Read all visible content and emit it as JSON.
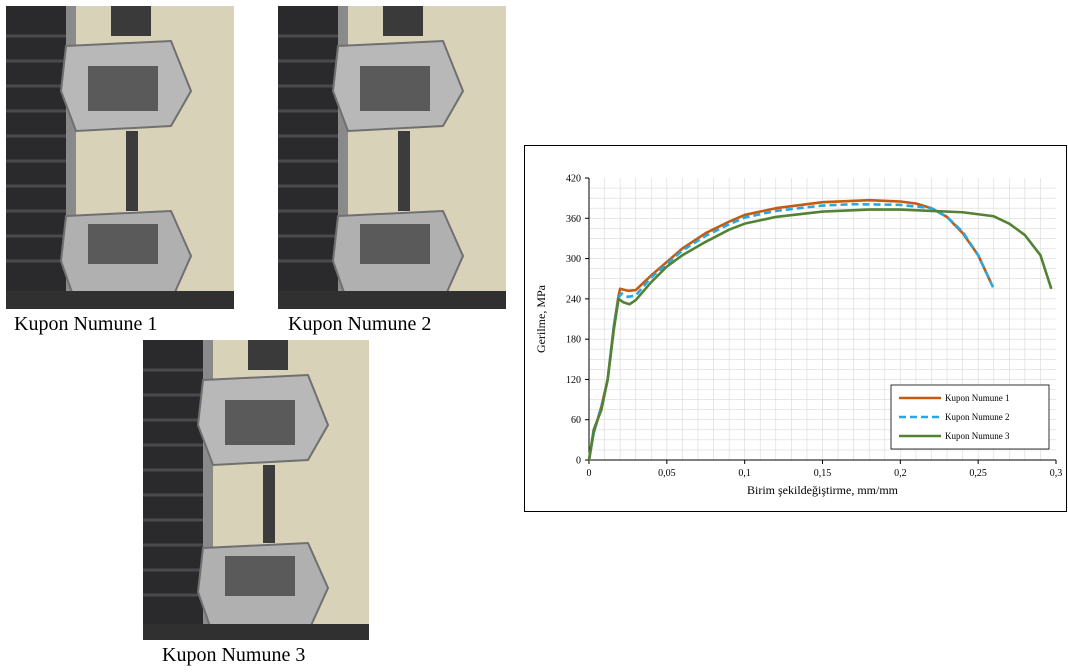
{
  "photos": [
    {
      "caption": "Kupon Numune 1"
    },
    {
      "caption": "Kupon Numune 2"
    },
    {
      "caption": "Kupon Numune 3"
    }
  ],
  "chart_data": {
    "type": "line",
    "title": "",
    "xlabel": "Birim şekildeğiştirme, mm/mm",
    "ylabel": "Gerilme, MPa",
    "xlim": [
      0,
      0.3
    ],
    "ylim": [
      0,
      420
    ],
    "xticks": [
      0,
      0.05,
      0.1,
      0.15,
      0.2,
      0.25,
      0.3
    ],
    "xtick_labels": [
      "0",
      "0,05",
      "0,1",
      "0,15",
      "0,2",
      "0,25",
      "0,3"
    ],
    "yticks": [
      0,
      60,
      120,
      180,
      240,
      300,
      360,
      420
    ],
    "ytick_labels": [
      "0",
      "60",
      "120",
      "180",
      "240",
      "300",
      "360",
      "420"
    ],
    "grid": true,
    "legend_position": "bottom-right",
    "series": [
      {
        "name": "Kupon Numune 1",
        "color": "#C55A11",
        "dash": "solid",
        "points": [
          [
            0,
            0
          ],
          [
            0.003,
            40
          ],
          [
            0.008,
            80
          ],
          [
            0.012,
            120
          ],
          [
            0.016,
            200
          ],
          [
            0.019,
            245
          ],
          [
            0.02,
            255
          ],
          [
            0.025,
            252
          ],
          [
            0.03,
            253
          ],
          [
            0.04,
            275
          ],
          [
            0.05,
            295
          ],
          [
            0.06,
            315
          ],
          [
            0.075,
            338
          ],
          [
            0.09,
            355
          ],
          [
            0.1,
            365
          ],
          [
            0.12,
            375
          ],
          [
            0.15,
            384
          ],
          [
            0.18,
            387
          ],
          [
            0.2,
            385
          ],
          [
            0.21,
            382
          ],
          [
            0.22,
            375
          ],
          [
            0.23,
            362
          ],
          [
            0.24,
            338
          ],
          [
            0.25,
            305
          ],
          [
            0.258,
            265
          ]
        ]
      },
      {
        "name": "Kupon Numune 2",
        "color": "#29A8E0",
        "dash": "dashed",
        "points": [
          [
            0,
            0
          ],
          [
            0.003,
            40
          ],
          [
            0.008,
            80
          ],
          [
            0.012,
            120
          ],
          [
            0.016,
            200
          ],
          [
            0.019,
            242
          ],
          [
            0.021,
            248
          ],
          [
            0.025,
            243
          ],
          [
            0.03,
            245
          ],
          [
            0.04,
            272
          ],
          [
            0.05,
            292
          ],
          [
            0.06,
            312
          ],
          [
            0.075,
            334
          ],
          [
            0.09,
            351
          ],
          [
            0.1,
            361
          ],
          [
            0.12,
            371
          ],
          [
            0.15,
            379
          ],
          [
            0.17,
            381
          ],
          [
            0.2,
            380
          ],
          [
            0.22,
            375
          ],
          [
            0.23,
            362
          ],
          [
            0.24,
            340
          ],
          [
            0.25,
            305
          ],
          [
            0.26,
            255
          ]
        ]
      },
      {
        "name": "Kupon Numune 3",
        "color": "#548235",
        "dash": "solid",
        "points": [
          [
            0,
            0
          ],
          [
            0.003,
            45
          ],
          [
            0.008,
            75
          ],
          [
            0.012,
            120
          ],
          [
            0.016,
            195
          ],
          [
            0.019,
            240
          ],
          [
            0.022,
            235
          ],
          [
            0.026,
            232
          ],
          [
            0.03,
            238
          ],
          [
            0.04,
            265
          ],
          [
            0.05,
            288
          ],
          [
            0.06,
            305
          ],
          [
            0.075,
            325
          ],
          [
            0.09,
            343
          ],
          [
            0.1,
            352
          ],
          [
            0.12,
            362
          ],
          [
            0.15,
            370
          ],
          [
            0.18,
            373
          ],
          [
            0.2,
            373
          ],
          [
            0.22,
            371
          ],
          [
            0.24,
            369
          ],
          [
            0.26,
            363
          ],
          [
            0.27,
            352
          ],
          [
            0.28,
            335
          ],
          [
            0.29,
            305
          ],
          [
            0.297,
            255
          ]
        ]
      }
    ]
  }
}
